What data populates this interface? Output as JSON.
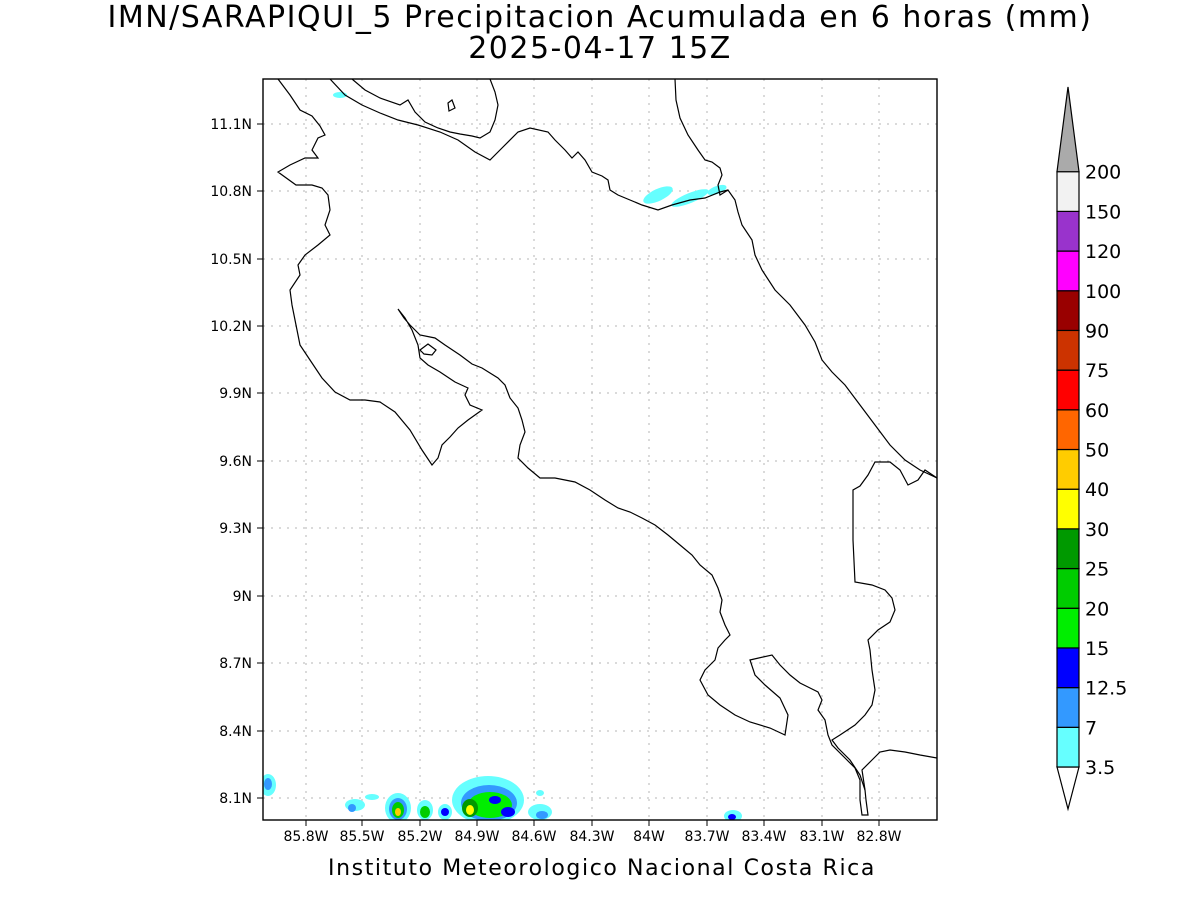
{
  "title": "IMN/SARAPIQUI_5 Precipitacion Acumulada en 6 horas (mm)",
  "subtitle": "2025-04-17 15Z",
  "footer": "Instituto Meteorologico Nacional Costa Rica",
  "map": {
    "lon_range": [
      -86.1,
      -82.6
    ],
    "lat_range": [
      7.99,
      11.3
    ],
    "lat_ticks": [
      "11.1N",
      "10.8N",
      "10.5N",
      "10.2N",
      "9.9N",
      "9.6N",
      "9.3N",
      "9N",
      "8.7N",
      "8.4N",
      "8.1N"
    ],
    "lon_ticks": [
      "85.8W",
      "85.5W",
      "85.2W",
      "84.9W",
      "84.6W",
      "84.3W",
      "84W",
      "83.7W",
      "83.4W",
      "83.1W",
      "82.8W"
    ],
    "grid": "dotted"
  },
  "colorbar": {
    "labels": [
      "3.5",
      "7",
      "12.5",
      "15",
      "20",
      "25",
      "30",
      "40",
      "50",
      "60",
      "75",
      "90",
      "100",
      "120",
      "150",
      "200"
    ],
    "colors": [
      "#66ffff",
      "#3399ff",
      "#0000ff",
      "#00ee00",
      "#00cc00",
      "#009900",
      "#ffff00",
      "#ffcc00",
      "#ff6600",
      "#ff0000",
      "#cc3300",
      "#990000",
      "#ff00ff",
      "#9933cc",
      "#f2f2f2",
      "#aaaaaa"
    ],
    "under_color": "#ffffff"
  }
}
